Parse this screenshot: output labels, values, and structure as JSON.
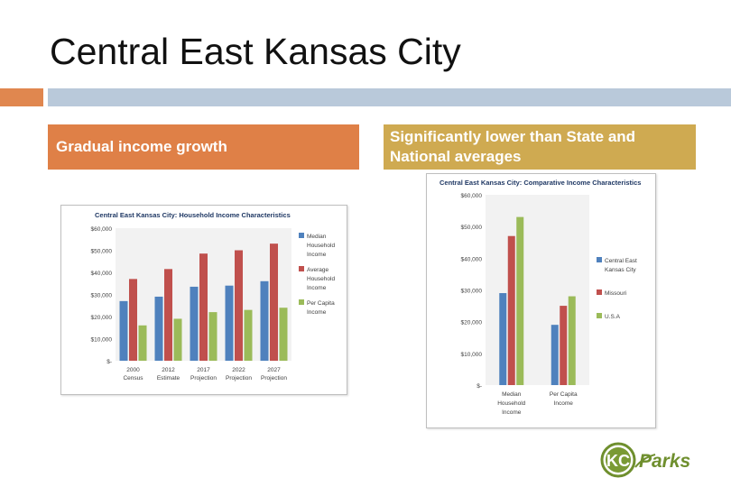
{
  "slide": {
    "title": "Central East Kansas City",
    "left_callout": "Gradual income growth",
    "right_callout_line1": "Significantly lower than State and",
    "right_callout_line2": "National averages"
  },
  "logo": {
    "text_kc": "KC",
    "text_parks": "Parks"
  },
  "colors": {
    "blue": "#4f81bd",
    "red": "#c0504d",
    "green": "#9bbb59",
    "orange_bar": "#df8047",
    "gold_bar": "#cfaa51"
  },
  "chart_data": [
    {
      "type": "bar",
      "title": "Central East Kansas City: Household Income Characteristics",
      "categories": [
        [
          "2000",
          "Census"
        ],
        [
          "2012",
          "Estimate"
        ],
        [
          "2017",
          "Projection"
        ],
        [
          "2022",
          "Projection"
        ],
        [
          "2027",
          "Projection"
        ]
      ],
      "series": [
        {
          "name": [
            "Median",
            "Household",
            "Income"
          ],
          "color": "#4f81bd",
          "values": [
            27000,
            29000,
            33500,
            34000,
            36000
          ]
        },
        {
          "name": [
            "Average",
            "Household",
            "Income"
          ],
          "color": "#c0504d",
          "values": [
            37000,
            41500,
            48500,
            50000,
            53000
          ]
        },
        {
          "name": [
            "Per Capita",
            "Income"
          ],
          "color": "#9bbb59",
          "values": [
            16000,
            19000,
            22000,
            23000,
            24000
          ]
        }
      ],
      "ylim": [
        0,
        60000
      ],
      "yticks": [
        0,
        10000,
        20000,
        30000,
        40000,
        50000,
        60000
      ],
      "ytick_labels": [
        "$-",
        "$10,000",
        "$20,000",
        "$30,000",
        "$40,000",
        "$50,000",
        "$60,000"
      ],
      "legend": "right",
      "grid": false
    },
    {
      "type": "bar",
      "title": "Central East Kansas City: Comparative Income Characteristics",
      "categories": [
        [
          "Median",
          "Household",
          "Income"
        ],
        [
          "Per Capita",
          "Income"
        ]
      ],
      "series": [
        {
          "name": [
            "Central East",
            "Kansas City"
          ],
          "color": "#4f81bd",
          "values": [
            29000,
            19000
          ]
        },
        {
          "name": [
            "Missouri"
          ],
          "color": "#c0504d",
          "values": [
            47000,
            25000
          ]
        },
        {
          "name": [
            "U.S.A"
          ],
          "color": "#9bbb59",
          "values": [
            53000,
            28000
          ]
        }
      ],
      "ylim": [
        0,
        60000
      ],
      "yticks": [
        0,
        10000,
        20000,
        30000,
        40000,
        50000,
        60000
      ],
      "ytick_labels": [
        "$-",
        "$10,000",
        "$20,000",
        "$30,000",
        "$40,000",
        "$50,000",
        "$60,000"
      ],
      "legend": "right",
      "grid": false
    }
  ]
}
